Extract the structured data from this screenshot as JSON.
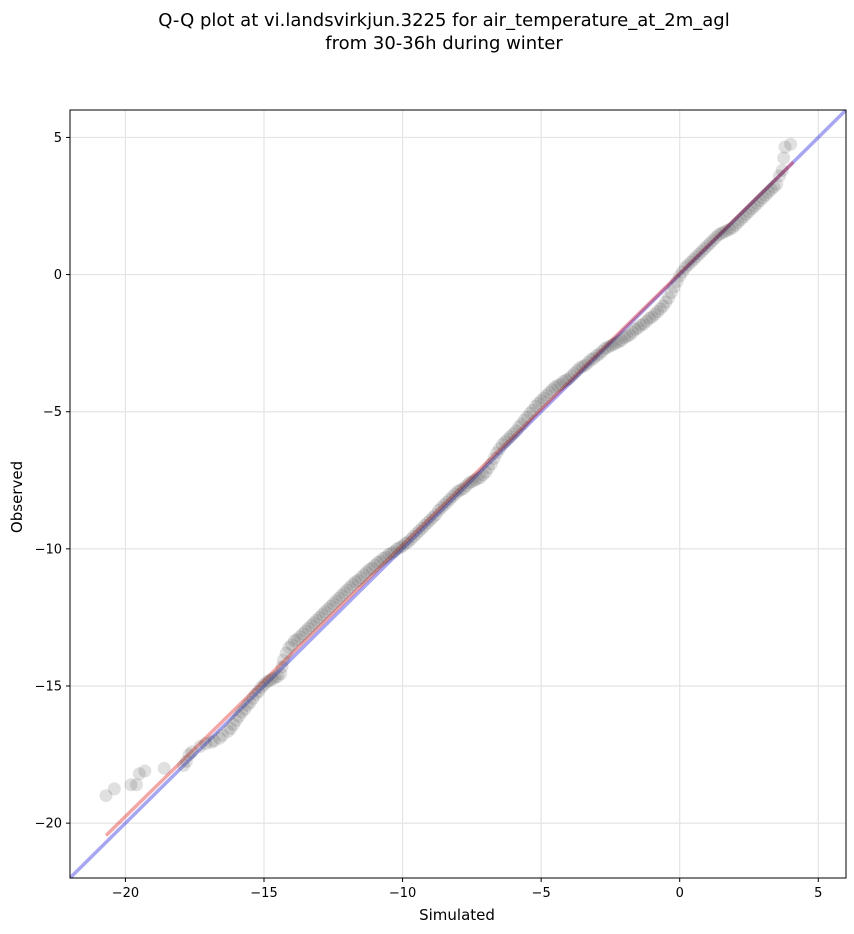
{
  "chart_data": {
    "type": "scatter",
    "title_lines": [
      "Q-Q plot at vi.landsvirkjun.3225 for air_temperature_at_2m_agl",
      "from 30-36h during winter"
    ],
    "xlabel": "Simulated",
    "ylabel": "Observed",
    "xlim": [
      -22,
      6
    ],
    "ylim": [
      -22,
      6
    ],
    "xticks": [
      -20,
      -15,
      -10,
      -5,
      0,
      5
    ],
    "yticks": [
      -20,
      -15,
      -10,
      -5,
      0,
      5
    ],
    "xtick_labels": [
      "−20",
      "−15",
      "−10",
      "−5",
      "0",
      "5"
    ],
    "ytick_labels": [
      "−20",
      "−15",
      "−10",
      "−5",
      "0",
      "5"
    ],
    "grid": true,
    "reference_line": {
      "name": "1:1",
      "color": "#0000dd",
      "x": [
        -22,
        6
      ],
      "y": [
        -22,
        6
      ]
    },
    "fit_line": {
      "color": "#dd0000",
      "x": [
        -20.7,
        4.1
      ],
      "y": [
        -20.45,
        4.1
      ]
    },
    "series": [
      {
        "marker_color": "#303030",
        "points": [
          [
            -20.7,
            -19.0
          ],
          [
            -20.4,
            -18.75
          ],
          [
            -19.8,
            -18.6
          ],
          [
            -19.6,
            -18.6
          ],
          [
            -19.5,
            -18.2
          ],
          [
            -19.3,
            -18.1
          ],
          [
            -18.6,
            -18.0
          ],
          [
            -17.9,
            -17.9
          ],
          [
            -17.8,
            -17.75
          ],
          [
            -17.7,
            -17.5
          ],
          [
            -17.6,
            -17.4
          ],
          [
            -17.3,
            -17.2
          ],
          [
            -17.1,
            -17.1
          ],
          [
            -16.9,
            -17.05
          ],
          [
            -16.8,
            -17.0
          ],
          [
            -16.6,
            -16.9
          ],
          [
            -16.5,
            -16.8
          ],
          [
            -16.3,
            -16.65
          ],
          [
            -16.2,
            -16.55
          ],
          [
            -16.1,
            -16.4
          ],
          [
            -16.0,
            -16.25
          ],
          [
            -15.9,
            -16.1
          ],
          [
            -15.8,
            -15.95
          ],
          [
            -15.7,
            -15.85
          ],
          [
            -15.6,
            -15.7
          ],
          [
            -15.5,
            -15.6
          ],
          [
            -15.4,
            -15.45
          ],
          [
            -15.3,
            -15.3
          ],
          [
            -15.2,
            -15.2
          ],
          [
            -15.1,
            -15.05
          ],
          [
            -15.0,
            -14.95
          ],
          [
            -14.9,
            -14.85
          ],
          [
            -14.8,
            -14.8
          ],
          [
            -14.7,
            -14.75
          ],
          [
            -14.6,
            -14.7
          ],
          [
            -14.5,
            -14.65
          ],
          [
            -14.4,
            -14.55
          ],
          [
            -14.35,
            -14.3
          ],
          [
            -14.3,
            -14.05
          ],
          [
            -14.2,
            -13.8
          ],
          [
            -14.1,
            -13.6
          ],
          [
            -14.0,
            -13.5
          ],
          [
            -13.9,
            -13.35
          ],
          [
            -13.8,
            -13.3
          ],
          [
            -13.7,
            -13.2
          ],
          [
            -13.6,
            -13.1
          ],
          [
            -13.5,
            -13.0
          ],
          [
            -13.4,
            -12.9
          ],
          [
            -13.3,
            -12.8
          ],
          [
            -13.2,
            -12.7
          ],
          [
            -13.1,
            -12.6
          ],
          [
            -13.0,
            -12.5
          ],
          [
            -12.9,
            -12.4
          ],
          [
            -12.8,
            -12.3
          ],
          [
            -12.7,
            -12.2
          ],
          [
            -12.6,
            -12.1
          ],
          [
            -12.5,
            -12.0
          ],
          [
            -12.4,
            -11.9
          ],
          [
            -12.3,
            -11.8
          ],
          [
            -12.2,
            -11.7
          ],
          [
            -12.1,
            -11.6
          ],
          [
            -12.0,
            -11.5
          ],
          [
            -11.9,
            -11.4
          ],
          [
            -11.8,
            -11.3
          ],
          [
            -11.7,
            -11.2
          ],
          [
            -11.6,
            -11.15
          ],
          [
            -11.5,
            -11.05
          ],
          [
            -11.4,
            -10.95
          ],
          [
            -11.3,
            -10.85
          ],
          [
            -11.2,
            -10.75
          ],
          [
            -11.1,
            -10.7
          ],
          [
            -11.0,
            -10.6
          ],
          [
            -10.9,
            -10.5
          ],
          [
            -10.8,
            -10.45
          ],
          [
            -10.7,
            -10.35
          ],
          [
            -10.6,
            -10.3
          ],
          [
            -10.5,
            -10.2
          ],
          [
            -10.4,
            -10.15
          ],
          [
            -10.3,
            -10.1
          ],
          [
            -10.2,
            -10.0
          ],
          [
            -10.1,
            -9.95
          ],
          [
            -10.0,
            -9.9
          ],
          [
            -9.9,
            -9.8
          ],
          [
            -9.8,
            -9.75
          ],
          [
            -9.7,
            -9.65
          ],
          [
            -9.6,
            -9.55
          ],
          [
            -9.5,
            -9.45
          ],
          [
            -9.4,
            -9.35
          ],
          [
            -9.3,
            -9.25
          ],
          [
            -9.2,
            -9.15
          ],
          [
            -9.1,
            -9.05
          ],
          [
            -9.0,
            -8.95
          ],
          [
            -8.9,
            -8.85
          ],
          [
            -8.8,
            -8.75
          ],
          [
            -8.7,
            -8.6
          ],
          [
            -8.6,
            -8.5
          ],
          [
            -8.5,
            -8.4
          ],
          [
            -8.4,
            -8.3
          ],
          [
            -8.3,
            -8.2
          ],
          [
            -8.2,
            -8.1
          ],
          [
            -8.1,
            -8.0
          ],
          [
            -8.0,
            -7.9
          ],
          [
            -7.9,
            -7.85
          ],
          [
            -7.8,
            -7.8
          ],
          [
            -7.7,
            -7.7
          ],
          [
            -7.6,
            -7.6
          ],
          [
            -7.5,
            -7.55
          ],
          [
            -7.4,
            -7.5
          ],
          [
            -7.3,
            -7.45
          ],
          [
            -7.2,
            -7.4
          ],
          [
            -7.1,
            -7.3
          ],
          [
            -7.0,
            -7.2
          ],
          [
            -6.9,
            -7.05
          ],
          [
            -6.8,
            -6.9
          ],
          [
            -6.7,
            -6.7
          ],
          [
            -6.6,
            -6.5
          ],
          [
            -6.5,
            -6.35
          ],
          [
            -6.4,
            -6.2
          ],
          [
            -6.3,
            -6.1
          ],
          [
            -6.2,
            -6.0
          ],
          [
            -6.1,
            -5.9
          ],
          [
            -6.0,
            -5.8
          ],
          [
            -5.9,
            -5.7
          ],
          [
            -5.8,
            -5.55
          ],
          [
            -5.7,
            -5.45
          ],
          [
            -5.6,
            -5.3
          ],
          [
            -5.5,
            -5.2
          ],
          [
            -5.4,
            -5.05
          ],
          [
            -5.3,
            -4.95
          ],
          [
            -5.2,
            -4.8
          ],
          [
            -5.1,
            -4.7
          ],
          [
            -5.0,
            -4.6
          ],
          [
            -4.9,
            -4.5
          ],
          [
            -4.8,
            -4.4
          ],
          [
            -4.7,
            -4.3
          ],
          [
            -4.6,
            -4.2
          ],
          [
            -4.5,
            -4.1
          ],
          [
            -4.4,
            -4.05
          ],
          [
            -4.3,
            -4.0
          ],
          [
            -4.2,
            -3.9
          ],
          [
            -4.1,
            -3.85
          ],
          [
            -4.0,
            -3.8
          ],
          [
            -3.9,
            -3.7
          ],
          [
            -3.8,
            -3.6
          ],
          [
            -3.7,
            -3.5
          ],
          [
            -3.6,
            -3.4
          ],
          [
            -3.5,
            -3.35
          ],
          [
            -3.4,
            -3.3
          ],
          [
            -3.3,
            -3.2
          ],
          [
            -3.2,
            -3.1
          ],
          [
            -3.1,
            -3.05
          ],
          [
            -3.0,
            -2.95
          ],
          [
            -2.9,
            -2.9
          ],
          [
            -2.8,
            -2.8
          ],
          [
            -2.7,
            -2.7
          ],
          [
            -2.6,
            -2.65
          ],
          [
            -2.5,
            -2.6
          ],
          [
            -2.4,
            -2.55
          ],
          [
            -2.3,
            -2.5
          ],
          [
            -2.2,
            -2.45
          ],
          [
            -2.1,
            -2.4
          ],
          [
            -2.0,
            -2.3
          ],
          [
            -1.9,
            -2.25
          ],
          [
            -1.8,
            -2.2
          ],
          [
            -1.7,
            -2.1
          ],
          [
            -1.6,
            -2.0
          ],
          [
            -1.5,
            -1.95
          ],
          [
            -1.4,
            -1.85
          ],
          [
            -1.3,
            -1.8
          ],
          [
            -1.2,
            -1.7
          ],
          [
            -1.1,
            -1.6
          ],
          [
            -1.0,
            -1.55
          ],
          [
            -0.9,
            -1.45
          ],
          [
            -0.8,
            -1.35
          ],
          [
            -0.7,
            -1.25
          ],
          [
            -0.6,
            -1.15
          ],
          [
            -0.5,
            -1.0
          ],
          [
            -0.4,
            -0.85
          ],
          [
            -0.3,
            -0.65
          ],
          [
            -0.2,
            -0.45
          ],
          [
            -0.1,
            -0.25
          ],
          [
            0.0,
            -0.05
          ],
          [
            0.1,
            0.1
          ],
          [
            0.2,
            0.25
          ],
          [
            0.3,
            0.35
          ],
          [
            0.4,
            0.45
          ],
          [
            0.5,
            0.55
          ],
          [
            0.6,
            0.65
          ],
          [
            0.7,
            0.75
          ],
          [
            0.8,
            0.85
          ],
          [
            0.9,
            0.95
          ],
          [
            1.0,
            1.05
          ],
          [
            1.1,
            1.15
          ],
          [
            1.2,
            1.25
          ],
          [
            1.3,
            1.35
          ],
          [
            1.4,
            1.45
          ],
          [
            1.5,
            1.5
          ],
          [
            1.6,
            1.55
          ],
          [
            1.7,
            1.6
          ],
          [
            1.8,
            1.65
          ],
          [
            1.9,
            1.7
          ],
          [
            2.0,
            1.8
          ],
          [
            2.1,
            1.9
          ],
          [
            2.2,
            2.0
          ],
          [
            2.3,
            2.1
          ],
          [
            2.4,
            2.2
          ],
          [
            2.5,
            2.3
          ],
          [
            2.6,
            2.4
          ],
          [
            2.7,
            2.5
          ],
          [
            2.8,
            2.6
          ],
          [
            2.9,
            2.7
          ],
          [
            3.0,
            2.8
          ],
          [
            3.1,
            2.9
          ],
          [
            3.2,
            3.0
          ],
          [
            3.3,
            3.1
          ],
          [
            3.4,
            3.2
          ],
          [
            3.5,
            3.3
          ],
          [
            3.6,
            3.6
          ],
          [
            3.7,
            3.8
          ],
          [
            3.75,
            4.25
          ],
          [
            3.8,
            4.65
          ],
          [
            4.0,
            4.75
          ]
        ]
      }
    ]
  }
}
